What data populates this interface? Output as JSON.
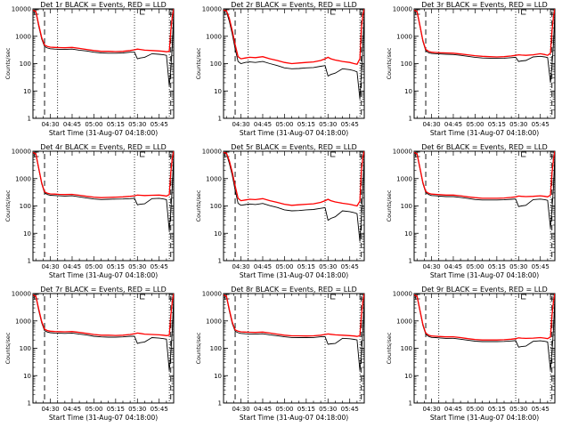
{
  "colors": {
    "events": "#000000",
    "lld": "#ff0000",
    "background": "#ffffff"
  },
  "axes": {
    "xlabel": "Start Time (31-Aug-07 04:18:00)",
    "ylabel": "Counts/sec",
    "x_tick_labels": [
      "04:30",
      "04:45",
      "05:00",
      "05:15",
      "05:30",
      "05:45"
    ],
    "x_tick_minutes": [
      30,
      45,
      60,
      75,
      90,
      105
    ],
    "xlim_minutes": [
      18,
      115
    ],
    "y_tick_labels": [
      "1",
      "10",
      "100",
      "1000",
      "10000"
    ],
    "y_tick_values": [
      1,
      10,
      100,
      1000,
      10000
    ],
    "ylim": [
      1,
      10000
    ],
    "y_scale": "log"
  },
  "chart_data": [
    {
      "type": "line",
      "title": "Det 1r BLACK = Events, RED = LLD",
      "x": [
        18,
        20,
        22,
        24,
        26,
        28,
        30,
        33,
        36,
        40,
        45,
        50,
        55,
        60,
        65,
        70,
        75,
        80,
        85,
        88,
        90,
        92,
        95,
        100,
        105,
        108,
        110,
        112,
        113,
        114,
        115
      ],
      "series": [
        {
          "color": "red",
          "values": [
            9000,
            8000,
            2600,
            900,
            480,
            420,
            400,
            390,
            385,
            380,
            390,
            360,
            330,
            300,
            280,
            280,
            275,
            280,
            300,
            320,
            340,
            330,
            310,
            300,
            290,
            280,
            270,
            280,
            1500,
            5000,
            10000
          ]
        },
        {
          "color": "black",
          "values": [
            9000,
            7500,
            2300,
            800,
            420,
            370,
            350,
            340,
            335,
            330,
            340,
            310,
            290,
            260,
            245,
            240,
            240,
            245,
            260,
            260,
            150,
            160,
            170,
            230,
            220,
            210,
            200,
            15,
            60,
            400,
            8000
          ]
        }
      ]
    },
    {
      "type": "line",
      "title": "Det 2r BLACK = Events, RED = LLD",
      "x": [
        18,
        20,
        22,
        24,
        26,
        28,
        30,
        33,
        36,
        40,
        45,
        50,
        55,
        60,
        65,
        70,
        75,
        80,
        85,
        88,
        90,
        92,
        95,
        100,
        105,
        108,
        110,
        112,
        113,
        114,
        115
      ],
      "series": [
        {
          "color": "red",
          "values": [
            9000,
            8500,
            4500,
            1600,
            500,
            180,
            150,
            160,
            170,
            165,
            180,
            150,
            130,
            110,
            100,
            105,
            110,
            115,
            130,
            150,
            170,
            150,
            135,
            120,
            110,
            100,
            95,
            150,
            1800,
            6000,
            10000
          ]
        },
        {
          "color": "black",
          "values": [
            9000,
            8000,
            3500,
            1200,
            350,
            120,
            100,
            110,
            115,
            110,
            120,
            100,
            85,
            70,
            65,
            66,
            70,
            72,
            80,
            85,
            35,
            40,
            45,
            65,
            60,
            55,
            50,
            5,
            40,
            400,
            8000
          ]
        }
      ]
    },
    {
      "type": "line",
      "title": "Det 3r BLACK = Events, RED = LLD",
      "x": [
        18,
        20,
        22,
        24,
        26,
        28,
        30,
        33,
        36,
        40,
        45,
        50,
        55,
        60,
        65,
        70,
        75,
        80,
        85,
        88,
        90,
        92,
        95,
        100,
        105,
        108,
        110,
        112,
        113,
        114,
        115
      ],
      "series": [
        {
          "color": "red",
          "values": [
            9000,
            8000,
            2500,
            700,
            330,
            280,
            260,
            255,
            250,
            245,
            240,
            225,
            210,
            195,
            185,
            180,
            175,
            180,
            190,
            200,
            210,
            205,
            200,
            210,
            230,
            215,
            200,
            240,
            1500,
            5000,
            10000
          ]
        },
        {
          "color": "black",
          "values": [
            9000,
            7500,
            2300,
            650,
            300,
            250,
            235,
            230,
            225,
            220,
            215,
            200,
            185,
            170,
            160,
            158,
            155,
            158,
            165,
            170,
            120,
            125,
            130,
            175,
            185,
            175,
            165,
            20,
            80,
            500,
            8000
          ]
        }
      ]
    },
    {
      "type": "line",
      "title": "Det 4r BLACK = Events, RED = LLD",
      "x": [
        18,
        20,
        22,
        24,
        26,
        28,
        30,
        33,
        36,
        40,
        45,
        50,
        55,
        60,
        65,
        70,
        75,
        80,
        85,
        88,
        90,
        92,
        95,
        100,
        105,
        108,
        110,
        112,
        113,
        114,
        115
      ],
      "series": [
        {
          "color": "red",
          "values": [
            9000,
            8000,
            2400,
            700,
            330,
            290,
            275,
            270,
            265,
            260,
            265,
            245,
            225,
            210,
            200,
            205,
            210,
            215,
            225,
            235,
            250,
            245,
            240,
            245,
            250,
            240,
            230,
            260,
            1600,
            5500,
            10000
          ]
        },
        {
          "color": "black",
          "values": [
            9000,
            7500,
            2200,
            650,
            300,
            260,
            245,
            240,
            235,
            230,
            235,
            215,
            195,
            180,
            172,
            175,
            178,
            180,
            185,
            190,
            110,
            115,
            120,
            185,
            190,
            180,
            170,
            12,
            60,
            450,
            8000
          ]
        }
      ]
    },
    {
      "type": "line",
      "title": "Det 5r BLACK = Events, RED = LLD",
      "x": [
        18,
        20,
        22,
        24,
        26,
        28,
        30,
        33,
        36,
        40,
        45,
        50,
        55,
        60,
        65,
        70,
        75,
        80,
        85,
        88,
        90,
        92,
        95,
        100,
        105,
        108,
        110,
        112,
        113,
        114,
        115
      ],
      "series": [
        {
          "color": "red",
          "values": [
            9000,
            8500,
            4500,
            1700,
            550,
            190,
            155,
            165,
            175,
            170,
            185,
            155,
            135,
            115,
            105,
            110,
            115,
            120,
            135,
            155,
            175,
            155,
            140,
            125,
            115,
            105,
            100,
            150,
            1800,
            6000,
            10000
          ]
        },
        {
          "color": "black",
          "values": [
            9000,
            8000,
            3600,
            1300,
            380,
            125,
            105,
            112,
            118,
            113,
            123,
            102,
            88,
            72,
            66,
            68,
            72,
            74,
            82,
            87,
            30,
            35,
            40,
            66,
            62,
            57,
            52,
            5,
            35,
            400,
            8000
          ]
        }
      ]
    },
    {
      "type": "line",
      "title": "Det 6r BLACK = Events, RED = LLD",
      "x": [
        18,
        20,
        22,
        24,
        26,
        28,
        30,
        33,
        36,
        40,
        45,
        50,
        55,
        60,
        65,
        70,
        75,
        80,
        85,
        88,
        90,
        92,
        95,
        100,
        105,
        108,
        110,
        112,
        113,
        114,
        115
      ],
      "series": [
        {
          "color": "red",
          "values": [
            9000,
            8000,
            2500,
            720,
            340,
            290,
            270,
            265,
            258,
            250,
            250,
            235,
            215,
            200,
            190,
            190,
            190,
            195,
            205,
            215,
            230,
            225,
            220,
            225,
            235,
            225,
            215,
            250,
            1500,
            5000,
            10000
          ]
        },
        {
          "color": "black",
          "values": [
            9000,
            7500,
            2300,
            660,
            310,
            260,
            240,
            235,
            228,
            220,
            220,
            205,
            188,
            172,
            165,
            165,
            165,
            168,
            175,
            180,
            95,
            100,
            105,
            170,
            178,
            170,
            160,
            15,
            70,
            450,
            8000
          ]
        }
      ]
    },
    {
      "type": "line",
      "title": "Det 7r BLACK = Events, RED = LLD",
      "x": [
        18,
        20,
        22,
        24,
        26,
        28,
        30,
        33,
        36,
        40,
        45,
        50,
        55,
        60,
        65,
        70,
        75,
        80,
        85,
        88,
        90,
        92,
        95,
        100,
        105,
        108,
        110,
        112,
        113,
        114,
        115
      ],
      "series": [
        {
          "color": "red",
          "values": [
            9000,
            8000,
            2700,
            950,
            500,
            440,
            420,
            410,
            405,
            400,
            410,
            380,
            350,
            320,
            300,
            300,
            295,
            300,
            320,
            340,
            360,
            350,
            330,
            320,
            310,
            300,
            290,
            300,
            1500,
            5000,
            10000
          ]
        },
        {
          "color": "black",
          "values": [
            9000,
            7500,
            2400,
            850,
            440,
            390,
            370,
            360,
            355,
            350,
            360,
            330,
            305,
            275,
            260,
            255,
            255,
            260,
            275,
            275,
            150,
            160,
            170,
            245,
            235,
            225,
            215,
            15,
            60,
            400,
            8000
          ]
        }
      ]
    },
    {
      "type": "line",
      "title": "Det 8r BLACK = Events, RED = LLD",
      "x": [
        18,
        20,
        22,
        24,
        26,
        28,
        30,
        33,
        36,
        40,
        45,
        50,
        55,
        60,
        65,
        70,
        75,
        80,
        85,
        88,
        90,
        92,
        95,
        100,
        105,
        108,
        110,
        112,
        113,
        114,
        115
      ],
      "series": [
        {
          "color": "red",
          "values": [
            9000,
            8000,
            2600,
            900,
            470,
            420,
            400,
            390,
            385,
            380,
            390,
            360,
            330,
            300,
            285,
            285,
            280,
            285,
            300,
            320,
            335,
            325,
            310,
            300,
            290,
            280,
            270,
            290,
            1500,
            5000,
            10000
          ]
        },
        {
          "color": "black",
          "values": [
            9000,
            7500,
            2300,
            800,
            420,
            370,
            350,
            340,
            335,
            330,
            340,
            310,
            288,
            262,
            248,
            245,
            245,
            248,
            262,
            265,
            140,
            145,
            150,
            232,
            222,
            212,
            202,
            15,
            60,
            400,
            8000
          ]
        }
      ]
    },
    {
      "type": "line",
      "title": "Det 9r BLACK = Events, RED = LLD",
      "x": [
        18,
        20,
        22,
        24,
        26,
        28,
        30,
        33,
        36,
        40,
        45,
        50,
        55,
        60,
        65,
        70,
        75,
        80,
        85,
        88,
        90,
        92,
        95,
        100,
        105,
        108,
        110,
        112,
        113,
        114,
        115
      ],
      "series": [
        {
          "color": "red",
          "values": [
            9000,
            8000,
            2500,
            750,
            360,
            300,
            280,
            275,
            268,
            260,
            262,
            245,
            225,
            210,
            200,
            200,
            200,
            205,
            215,
            225,
            240,
            235,
            230,
            235,
            245,
            235,
            225,
            260,
            1500,
            5000,
            10000
          ]
        },
        {
          "color": "black",
          "values": [
            9000,
            7500,
            2300,
            690,
            330,
            270,
            250,
            245,
            238,
            230,
            232,
            215,
            197,
            182,
            175,
            175,
            175,
            178,
            185,
            190,
            110,
            115,
            120,
            180,
            188,
            180,
            170,
            15,
            70,
            450,
            8000
          ]
        }
      ]
    }
  ]
}
